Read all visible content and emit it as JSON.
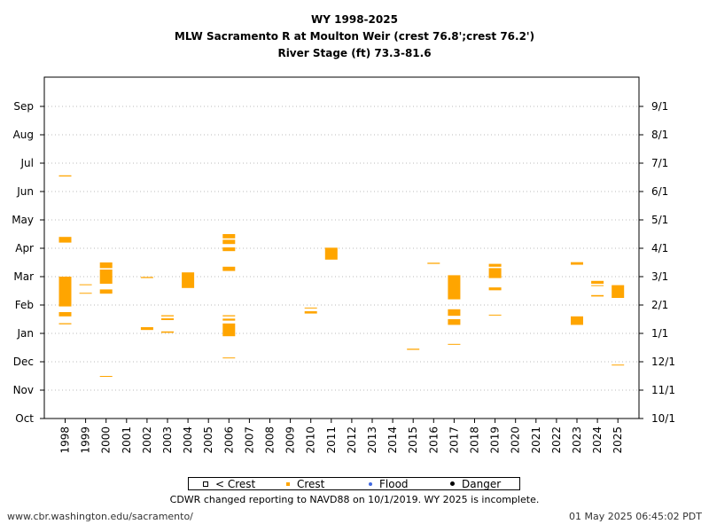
{
  "header": {
    "line1": "WY 1998-2025",
    "line2": "MLW Sacramento R at Moulton Weir (crest 76.8';crest 76.2')",
    "line3": "River Stage (ft) 73.3-81.6"
  },
  "legend": {
    "below_crest": "< Crest",
    "crest": "Crest",
    "flood": "Flood",
    "danger": "Danger"
  },
  "note": "CDWR changed reporting to NAVD88 on 10/1/2019. WY 2025 is incomplete.",
  "footer": {
    "url": "www.cbr.washington.edu/sacramento/",
    "timestamp": "01 May 2025 06:45:02 PDT"
  },
  "colors": {
    "crest": "#FFA500",
    "below_crest": "#000000",
    "flood": "#4169E1",
    "danger": "#000000",
    "grid": "#bbbbbb"
  },
  "chart_data": {
    "type": "scatter",
    "x_axis": {
      "categories": [
        "1998",
        "1999",
        "2000",
        "2001",
        "2002",
        "2003",
        "2004",
        "2005",
        "2006",
        "2007",
        "2008",
        "2009",
        "2010",
        "2011",
        "2012",
        "2013",
        "2014",
        "2015",
        "2016",
        "2017",
        "2018",
        "2019",
        "2020",
        "2021",
        "2022",
        "2023",
        "2024",
        "2025"
      ]
    },
    "y_axis": {
      "left_labels": [
        "Oct",
        "Nov",
        "Dec",
        "Jan",
        "Feb",
        "Mar",
        "Apr",
        "May",
        "Jun",
        "Jul",
        "Aug",
        "Sep"
      ],
      "right_labels": [
        "10/1",
        "11/1",
        "12/1",
        "1/1",
        "2/1",
        "3/1",
        "4/1",
        "5/1",
        "6/1",
        "7/1",
        "8/1",
        "9/1"
      ],
      "unit": "month of water year",
      "range": [
        0,
        12
      ],
      "grid": true
    },
    "series": [
      {
        "name": "Crest",
        "color": "#FFA500",
        "segments": [
          {
            "year": "1998",
            "from": 8.53,
            "to": 8.57
          },
          {
            "year": "1998",
            "from": 6.2,
            "to": 6.4
          },
          {
            "year": "1998",
            "from": 3.95,
            "to": 5.0
          },
          {
            "year": "1998",
            "from": 3.6,
            "to": 3.75
          },
          {
            "year": "1998",
            "from": 3.32,
            "to": 3.36
          },
          {
            "year": "1999",
            "from": 4.7,
            "to": 4.73
          },
          {
            "year": "1999",
            "from": 4.4,
            "to": 4.43
          },
          {
            "year": "2000",
            "from": 5.3,
            "to": 5.5
          },
          {
            "year": "2000",
            "from": 4.75,
            "to": 5.25
          },
          {
            "year": "2000",
            "from": 4.4,
            "to": 4.55
          },
          {
            "year": "2000",
            "from": 1.47,
            "to": 1.5
          },
          {
            "year": "2002",
            "from": 4.95,
            "to": 4.99
          },
          {
            "year": "2002",
            "from": 3.12,
            "to": 3.22
          },
          {
            "year": "2003",
            "from": 3.6,
            "to": 3.64
          },
          {
            "year": "2003",
            "from": 3.47,
            "to": 3.53
          },
          {
            "year": "2003",
            "from": 3.02,
            "to": 3.07
          },
          {
            "year": "2004",
            "from": 4.6,
            "to": 5.15
          },
          {
            "year": "2006",
            "from": 6.35,
            "to": 6.5
          },
          {
            "year": "2006",
            "from": 6.15,
            "to": 6.3
          },
          {
            "year": "2006",
            "from": 5.9,
            "to": 6.03
          },
          {
            "year": "2006",
            "from": 5.2,
            "to": 5.35
          },
          {
            "year": "2006",
            "from": 3.6,
            "to": 3.64
          },
          {
            "year": "2006",
            "from": 3.45,
            "to": 3.52
          },
          {
            "year": "2006",
            "from": 2.9,
            "to": 3.35
          },
          {
            "year": "2006",
            "from": 2.12,
            "to": 2.15
          },
          {
            "year": "2010",
            "from": 3.88,
            "to": 3.91
          },
          {
            "year": "2010",
            "from": 3.7,
            "to": 3.78
          },
          {
            "year": "2011",
            "from": 5.6,
            "to": 6.02
          },
          {
            "year": "2015",
            "from": 2.42,
            "to": 2.46
          },
          {
            "year": "2016",
            "from": 5.45,
            "to": 5.49
          },
          {
            "year": "2017",
            "from": 4.2,
            "to": 5.05
          },
          {
            "year": "2017",
            "from": 3.62,
            "to": 3.85
          },
          {
            "year": "2017",
            "from": 3.3,
            "to": 3.5
          },
          {
            "year": "2017",
            "from": 2.6,
            "to": 2.63
          },
          {
            "year": "2019",
            "from": 5.35,
            "to": 5.45
          },
          {
            "year": "2019",
            "from": 4.95,
            "to": 5.3
          },
          {
            "year": "2019",
            "from": 4.52,
            "to": 4.62
          },
          {
            "year": "2019",
            "from": 3.63,
            "to": 3.66
          },
          {
            "year": "2023",
            "from": 5.42,
            "to": 5.51
          },
          {
            "year": "2023",
            "from": 3.3,
            "to": 3.6
          },
          {
            "year": "2024",
            "from": 4.75,
            "to": 4.85
          },
          {
            "year": "2024",
            "from": 4.67,
            "to": 4.7
          },
          {
            "year": "2024",
            "from": 4.3,
            "to": 4.35
          },
          {
            "year": "2025",
            "from": 4.25,
            "to": 4.7
          },
          {
            "year": "2025",
            "from": 1.87,
            "to": 1.9
          }
        ]
      },
      {
        "name": "< Crest",
        "color": "#000000",
        "segments": []
      },
      {
        "name": "Flood",
        "color": "#4169E1",
        "segments": []
      },
      {
        "name": "Danger",
        "color": "#000000",
        "segments": []
      }
    ]
  }
}
